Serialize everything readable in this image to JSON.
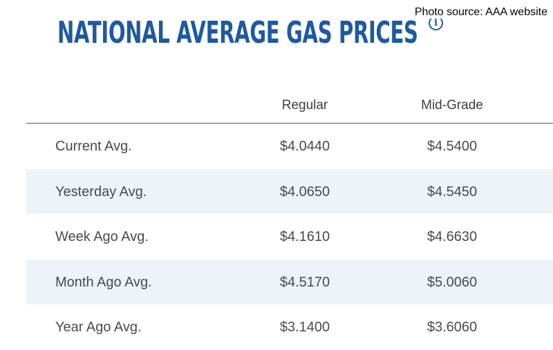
{
  "credit": "Photo source: AAA website",
  "title": "NATIONAL AVERAGE GAS PRICES",
  "info_icon": "info-icon",
  "info_glyph": "i",
  "colors": {
    "title": "#1d5aa1",
    "stripe": "#eef3f8",
    "text": "#4a4a4a"
  },
  "table": {
    "headers": [
      "Regular",
      "Mid-Grade"
    ],
    "rows": [
      {
        "label": "Current Avg.",
        "regular": "$4.0440",
        "mid": "$4.5400"
      },
      {
        "label": "Yesterday Avg.",
        "regular": "$4.0650",
        "mid": "$4.5450"
      },
      {
        "label": "Week Ago Avg.",
        "regular": "$4.1610",
        "mid": "$4.6630"
      },
      {
        "label": "Month Ago Avg.",
        "regular": "$4.5170",
        "mid": "$5.0060"
      },
      {
        "label": "Year Ago Avg.",
        "regular": "$3.1400",
        "mid": "$3.6060"
      }
    ]
  }
}
